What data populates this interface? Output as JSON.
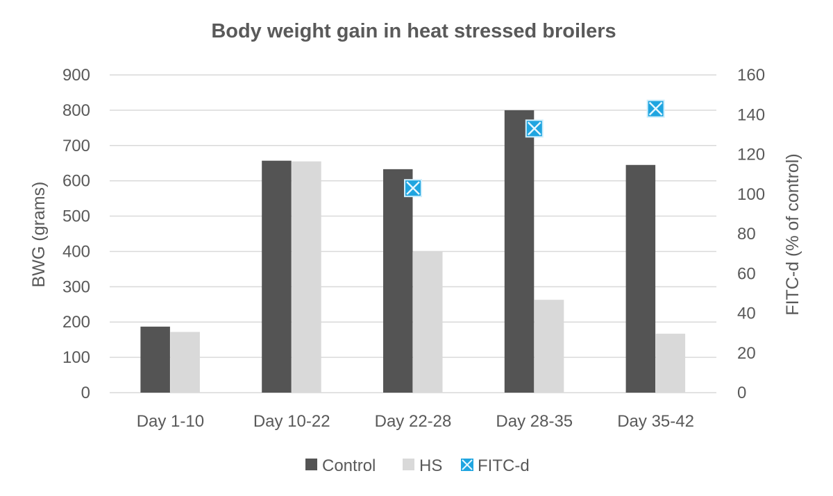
{
  "chart_data": {
    "type": "bar",
    "title": "Body weight gain in heat stressed broilers",
    "categories": [
      "Day 1-10",
      "Day 10-22",
      "Day 22-28",
      "Day 28-35",
      "Day 35-42"
    ],
    "series": [
      {
        "name": "Control",
        "type": "bar",
        "axis": "left",
        "color": "#545454",
        "values": [
          187,
          657,
          633,
          800,
          645
        ]
      },
      {
        "name": "HS",
        "type": "bar",
        "axis": "left",
        "color": "#d9d9d9",
        "values": [
          172,
          655,
          401,
          263,
          167
        ]
      },
      {
        "name": "FITC-d",
        "type": "scatter",
        "axis": "right",
        "color": "#1fa5e0",
        "values": [
          null,
          null,
          103,
          133,
          143
        ]
      }
    ],
    "ylabel": "BWG (grams)",
    "ylabel_right": "FITC-d (% of control)",
    "ylim": [
      0,
      900
    ],
    "ylim_right": [
      0,
      160
    ],
    "yticks": [
      "0",
      "100",
      "200",
      "300",
      "400",
      "500",
      "600",
      "700",
      "800",
      "900"
    ],
    "yticks_right": [
      "0",
      "20",
      "40",
      "60",
      "80",
      "100",
      "120",
      "140",
      "160"
    ],
    "grid": true,
    "legend_position": "bottom"
  }
}
